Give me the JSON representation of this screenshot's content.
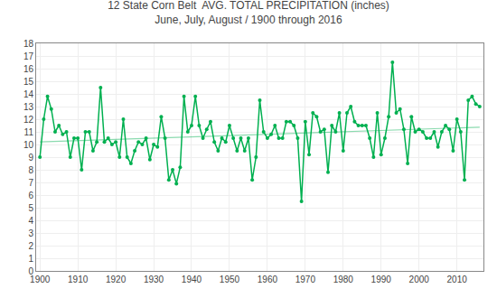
{
  "chart_data": {
    "type": "line",
    "title": "12 State Corn Belt  AVG. TOTAL PRECIPITATION (inches)",
    "subtitle": "June, July, August / 1900 through 2016",
    "series": [
      {
        "x": [
          1900,
          1901,
          1902,
          1903,
          1904,
          1905,
          1906,
          1907,
          1908,
          1909,
          1910,
          1911,
          1912,
          1913,
          1914,
          1915,
          1916,
          1917,
          1918,
          1919,
          1920,
          1921,
          1922,
          1923,
          1924,
          1925,
          1926,
          1927,
          1928,
          1929,
          1930,
          1931,
          1932,
          1933,
          1934,
          1935,
          1936,
          1937,
          1938,
          1939,
          1940,
          1941,
          1942,
          1943,
          1944,
          1945,
          1946,
          1947,
          1948,
          1949,
          1950,
          1951,
          1952,
          1953,
          1954,
          1955,
          1956,
          1957,
          1958,
          1959,
          1960,
          1961,
          1962,
          1963,
          1964,
          1965,
          1966,
          1967,
          1968,
          1969,
          1970,
          1971,
          1972,
          1973,
          1974,
          1975,
          1976,
          1977,
          1978,
          1979,
          1980,
          1981,
          1982,
          1983,
          1984,
          1985,
          1986,
          1987,
          1988,
          1989,
          1990,
          1991,
          1992,
          1993,
          1994,
          1995,
          1996,
          1997,
          1998,
          1999,
          2000,
          2001,
          2002,
          2003,
          2004,
          2005,
          2006,
          2007,
          2008,
          2009,
          2010,
          2011,
          2012,
          2013,
          2014,
          2015,
          2016
        ],
        "values": [
          9.0,
          12.0,
          13.8,
          12.8,
          11.0,
          11.5,
          10.8,
          11.0,
          9.0,
          10.5,
          10.5,
          8.0,
          11.0,
          11.0,
          9.5,
          10.2,
          14.5,
          10.2,
          10.5,
          10.0,
          10.2,
          9.0,
          12.0,
          9.0,
          8.5,
          9.5,
          10.2,
          10.0,
          10.5,
          8.8,
          10.0,
          9.8,
          12.2,
          10.5,
          7.2,
          8.0,
          6.9,
          8.2,
          13.8,
          11.0,
          11.5,
          13.8,
          11.5,
          10.5,
          11.2,
          11.8,
          10.2,
          9.5,
          10.5,
          10.2,
          11.5,
          10.5,
          9.5,
          10.5,
          9.5,
          10.5,
          7.2,
          9.0,
          13.5,
          11.0,
          10.5,
          10.8,
          11.5,
          10.5,
          10.5,
          11.8,
          11.8,
          11.5,
          10.5,
          5.5,
          11.8,
          9.2,
          12.5,
          12.2,
          11.0,
          11.2,
          7.8,
          11.5,
          11.0,
          12.5,
          9.5,
          12.5,
          13.0,
          11.8,
          11.5,
          11.5,
          11.5,
          10.5,
          9.0,
          12.5,
          9.2,
          10.5,
          12.2,
          16.5,
          12.5,
          12.8,
          11.2,
          8.5,
          12.2,
          11.0,
          11.2,
          11.0,
          10.5,
          10.5,
          11.0,
          9.8,
          11.0,
          11.5,
          11.2,
          9.5,
          12.0,
          11.0,
          7.2,
          13.5,
          13.8,
          13.2,
          13.0
        ],
        "color": "#00b050",
        "marker": "circle",
        "line_style": "solid"
      },
      {
        "x": [
          1900,
          2016
        ],
        "values": [
          10.2,
          11.37
        ],
        "color": "#00b050",
        "marker": "none",
        "line_style": "solid"
      }
    ],
    "xlim": [
      1899,
      2017
    ],
    "xticks": [
      1900,
      1910,
      1920,
      1930,
      1940,
      1950,
      1960,
      1970,
      1980,
      1990,
      2000,
      2010
    ],
    "ylim": [
      0,
      18
    ],
    "yticks": [
      0,
      1,
      2,
      3,
      4,
      5,
      6,
      7,
      8,
      9,
      10,
      11,
      12,
      13,
      14,
      15,
      16,
      17,
      18
    ],
    "grid": true
  }
}
